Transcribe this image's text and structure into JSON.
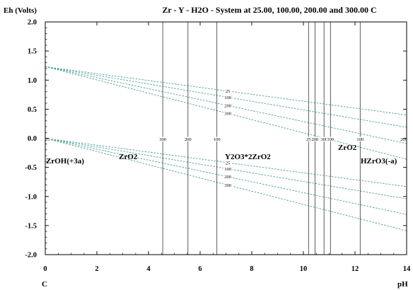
{
  "chart_data": {
    "type": "line",
    "title": "Zr - Y - H2O - System at 25.00, 100.00, 200.00 and 300.00 C",
    "ylabel": "Eh (Volts)",
    "xlabel": "pH",
    "corner_label": "C",
    "xlim": [
      0,
      14
    ],
    "ylim": [
      -2.0,
      2.0
    ],
    "xticks": [
      0,
      2,
      4,
      6,
      8,
      10,
      12,
      14
    ],
    "xtick_labels": [
      "0",
      "2",
      "4",
      "6",
      "8",
      "10",
      "12",
      "14"
    ],
    "yticks": [
      2.0,
      1.5,
      1.0,
      0.5,
      0.0,
      -0.5,
      -1.0,
      -1.5,
      -2.0
    ],
    "ytick_labels": [
      "2.0",
      "1.5",
      "1.0",
      "0.5",
      "0.0",
      "-0.5",
      "-1.0",
      "-1.5",
      "-2.0"
    ],
    "grid": false,
    "water_line_dashed": true,
    "water_lines": [
      {
        "label": "25",
        "upper": {
          "x": [
            0,
            14
          ],
          "y": [
            1.23,
            0.4
          ]
        },
        "lower": {
          "x": [
            0,
            14
          ],
          "y": [
            0.0,
            -0.83
          ]
        }
      },
      {
        "label": "100",
        "upper": {
          "x": [
            0,
            14
          ],
          "y": [
            1.23,
            0.19
          ]
        },
        "lower": {
          "x": [
            0,
            14
          ],
          "y": [
            0.0,
            -1.04
          ]
        }
      },
      {
        "label": "200",
        "upper": {
          "x": [
            0,
            14
          ],
          "y": [
            1.23,
            -0.09
          ]
        },
        "lower": {
          "x": [
            0,
            14
          ],
          "y": [
            0.0,
            -1.31
          ]
        }
      },
      {
        "label": "300",
        "upper": {
          "x": [
            0,
            14
          ],
          "y": [
            1.23,
            -0.36
          ]
        },
        "lower": {
          "x": [
            0,
            14
          ],
          "y": [
            0.0,
            -1.59
          ]
        }
      }
    ],
    "boundaries": [
      {
        "x": 0.0,
        "label": "25"
      },
      {
        "x": 4.55,
        "label": "300"
      },
      {
        "x": 5.53,
        "label": "200"
      },
      {
        "x": 6.65,
        "label": "100"
      },
      {
        "x": 10.2,
        "label": "25"
      },
      {
        "x": 10.45,
        "label": "200"
      },
      {
        "x": 10.8,
        "label": "300"
      },
      {
        "x": 11.05,
        "label": "100"
      },
      {
        "x": 12.2,
        "label": "100"
      },
      {
        "x": 14.0,
        "label": "200"
      }
    ],
    "regions": [
      {
        "name": "ZrOH(+3a)"
      },
      {
        "name": "ZrO2"
      },
      {
        "name": "Y2O3*2ZrO2"
      },
      {
        "name": "ZrO2"
      },
      {
        "name": "HZrO3(-a)"
      }
    ],
    "colors": {
      "water_line": "#4a9e96",
      "boundary": "#333333",
      "axis": "#000000",
      "text": "#000000"
    }
  }
}
